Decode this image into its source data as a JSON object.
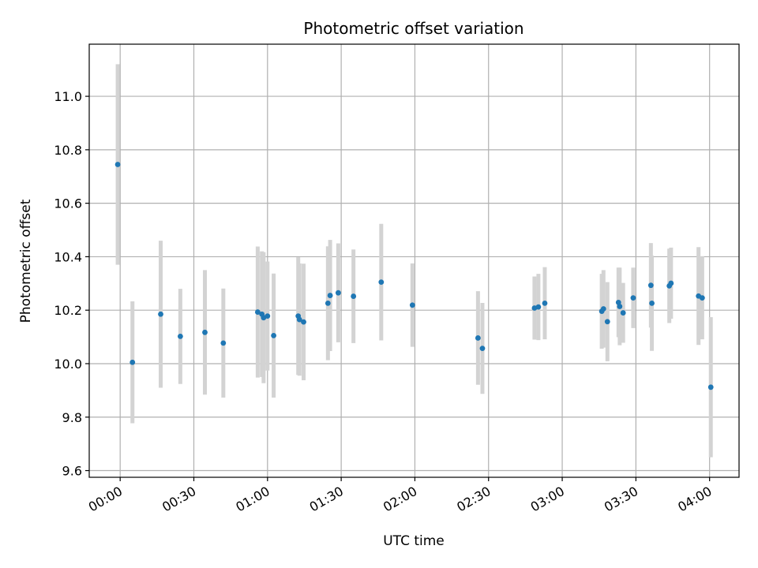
{
  "chart_data": {
    "type": "scatter",
    "title": "Photometric offset variation",
    "xlabel": "UTC time",
    "ylabel": "Photometric offset",
    "grid": true,
    "x_unit": "minutes since 00:00 UTC",
    "xlim": [
      -12.6,
      252
    ],
    "ylim": [
      9.575,
      11.195
    ],
    "x_ticks": [
      {
        "value": 0,
        "label": "00:00"
      },
      {
        "value": 30,
        "label": "00:30"
      },
      {
        "value": 60,
        "label": "01:00"
      },
      {
        "value": 90,
        "label": "01:30"
      },
      {
        "value": 120,
        "label": "02:00"
      },
      {
        "value": 150,
        "label": "02:30"
      },
      {
        "value": 180,
        "label": "03:00"
      },
      {
        "value": 210,
        "label": "03:30"
      },
      {
        "value": 240,
        "label": "04:00"
      }
    ],
    "y_ticks": [
      {
        "value": 9.6,
        "label": "9.6"
      },
      {
        "value": 9.8,
        "label": "9.8"
      },
      {
        "value": 10.0,
        "label": "10.0"
      },
      {
        "value": 10.2,
        "label": "10.2"
      },
      {
        "value": 10.4,
        "label": "10.4"
      },
      {
        "value": 10.6,
        "label": "10.6"
      },
      {
        "value": 10.8,
        "label": "10.8"
      },
      {
        "value": 11.0,
        "label": "11.0"
      }
    ],
    "series": [
      {
        "name": "photometric offset",
        "marker_color": "#1f77b4",
        "errorbar_color": "#d3d3d3",
        "points": [
          {
            "x": -1.0,
            "y": 10.745,
            "err": 0.375
          },
          {
            "x": 5.0,
            "y": 10.005,
            "err": 0.228
          },
          {
            "x": 16.5,
            "y": 10.185,
            "err": 0.275
          },
          {
            "x": 24.5,
            "y": 10.102,
            "err": 0.178
          },
          {
            "x": 34.5,
            "y": 10.117,
            "err": 0.233
          },
          {
            "x": 42.0,
            "y": 10.077,
            "err": 0.204
          },
          {
            "x": 56.0,
            "y": 10.193,
            "err": 0.245
          },
          {
            "x": 57.7,
            "y": 10.185,
            "err": 0.235
          },
          {
            "x": 58.4,
            "y": 10.172,
            "err": 0.245
          },
          {
            "x": 60.0,
            "y": 10.178,
            "err": 0.204
          },
          {
            "x": 62.5,
            "y": 10.105,
            "err": 0.232
          },
          {
            "x": 72.5,
            "y": 10.178,
            "err": 0.22
          },
          {
            "x": 73.0,
            "y": 10.165,
            "err": 0.21
          },
          {
            "x": 74.7,
            "y": 10.156,
            "err": 0.218
          },
          {
            "x": 84.6,
            "y": 10.226,
            "err": 0.213
          },
          {
            "x": 85.5,
            "y": 10.255,
            "err": 0.208
          },
          {
            "x": 88.8,
            "y": 10.265,
            "err": 0.185
          },
          {
            "x": 95.0,
            "y": 10.252,
            "err": 0.175
          },
          {
            "x": 106.3,
            "y": 10.305,
            "err": 0.218
          },
          {
            "x": 119.0,
            "y": 10.219,
            "err": 0.156
          },
          {
            "x": 145.7,
            "y": 10.096,
            "err": 0.175
          },
          {
            "x": 147.5,
            "y": 10.057,
            "err": 0.17
          },
          {
            "x": 168.7,
            "y": 10.208,
            "err": 0.118
          },
          {
            "x": 170.3,
            "y": 10.212,
            "err": 0.124
          },
          {
            "x": 172.9,
            "y": 10.226,
            "err": 0.135
          },
          {
            "x": 196.1,
            "y": 10.196,
            "err": 0.14
          },
          {
            "x": 196.8,
            "y": 10.205,
            "err": 0.145
          },
          {
            "x": 198.4,
            "y": 10.157,
            "err": 0.148
          },
          {
            "x": 202.9,
            "y": 10.229,
            "err": 0.13
          },
          {
            "x": 203.4,
            "y": 10.214,
            "err": 0.145
          },
          {
            "x": 204.8,
            "y": 10.19,
            "err": 0.112
          },
          {
            "x": 208.9,
            "y": 10.246,
            "err": 0.113
          },
          {
            "x": 216.1,
            "y": 10.293,
            "err": 0.158
          },
          {
            "x": 216.5,
            "y": 10.226,
            "err": 0.178
          },
          {
            "x": 223.6,
            "y": 10.291,
            "err": 0.139
          },
          {
            "x": 224.3,
            "y": 10.301,
            "err": 0.133
          },
          {
            "x": 235.5,
            "y": 10.253,
            "err": 0.183
          },
          {
            "x": 237.0,
            "y": 10.246,
            "err": 0.155
          },
          {
            "x": 240.5,
            "y": 9.912,
            "err": 0.262
          }
        ]
      }
    ]
  }
}
